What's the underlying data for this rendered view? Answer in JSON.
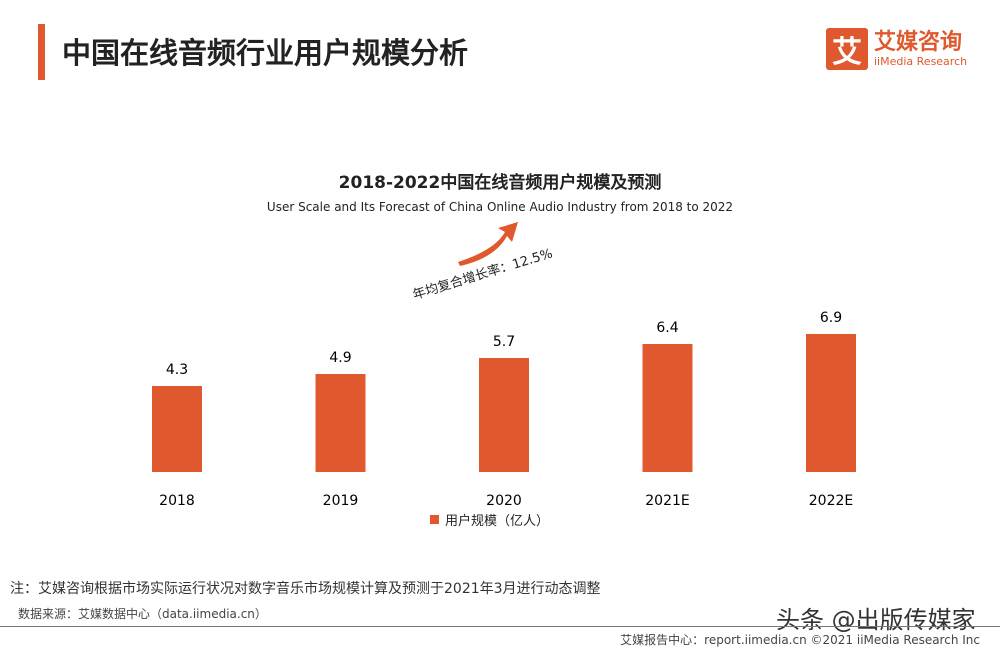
{
  "header": {
    "title": "中国在线音频行业用户规模分析",
    "logo_mark": "艾",
    "logo_cn": "艾媒咨询",
    "logo_en": "iiMedia Research"
  },
  "chart_data": {
    "type": "bar",
    "title": "2018-2022中国在线音频用户规模及预测",
    "subtitle": "User Scale and Its Forecast of China Online Audio Industry from 2018 to 2022",
    "annotation": "年均复合增长率：12.5%",
    "categories": [
      "2018",
      "2019",
      "2020",
      "2021E",
      "2022E"
    ],
    "series": [
      {
        "name": "用户规模（亿人）",
        "values": [
          4.3,
          4.9,
          5.7,
          6.4,
          6.9
        ]
      }
    ],
    "data_labels": [
      "4.3",
      "4.9",
      "5.7",
      "6.4",
      "6.9"
    ],
    "legend": "bottom",
    "grid": false,
    "color": "#e0582e"
  },
  "footer": {
    "note": "注：艾媒咨询根据市场实际运行状况对数字音乐市场规模计算及预测于2021年3月进行动态调整",
    "source": "数据来源：艾媒数据中心（data.iimedia.cn）",
    "copyright": "艾媒报告中心：report.iimedia.cn ©2021 iiMedia Research Inc",
    "watermark": "头条 @出版传媒家"
  }
}
